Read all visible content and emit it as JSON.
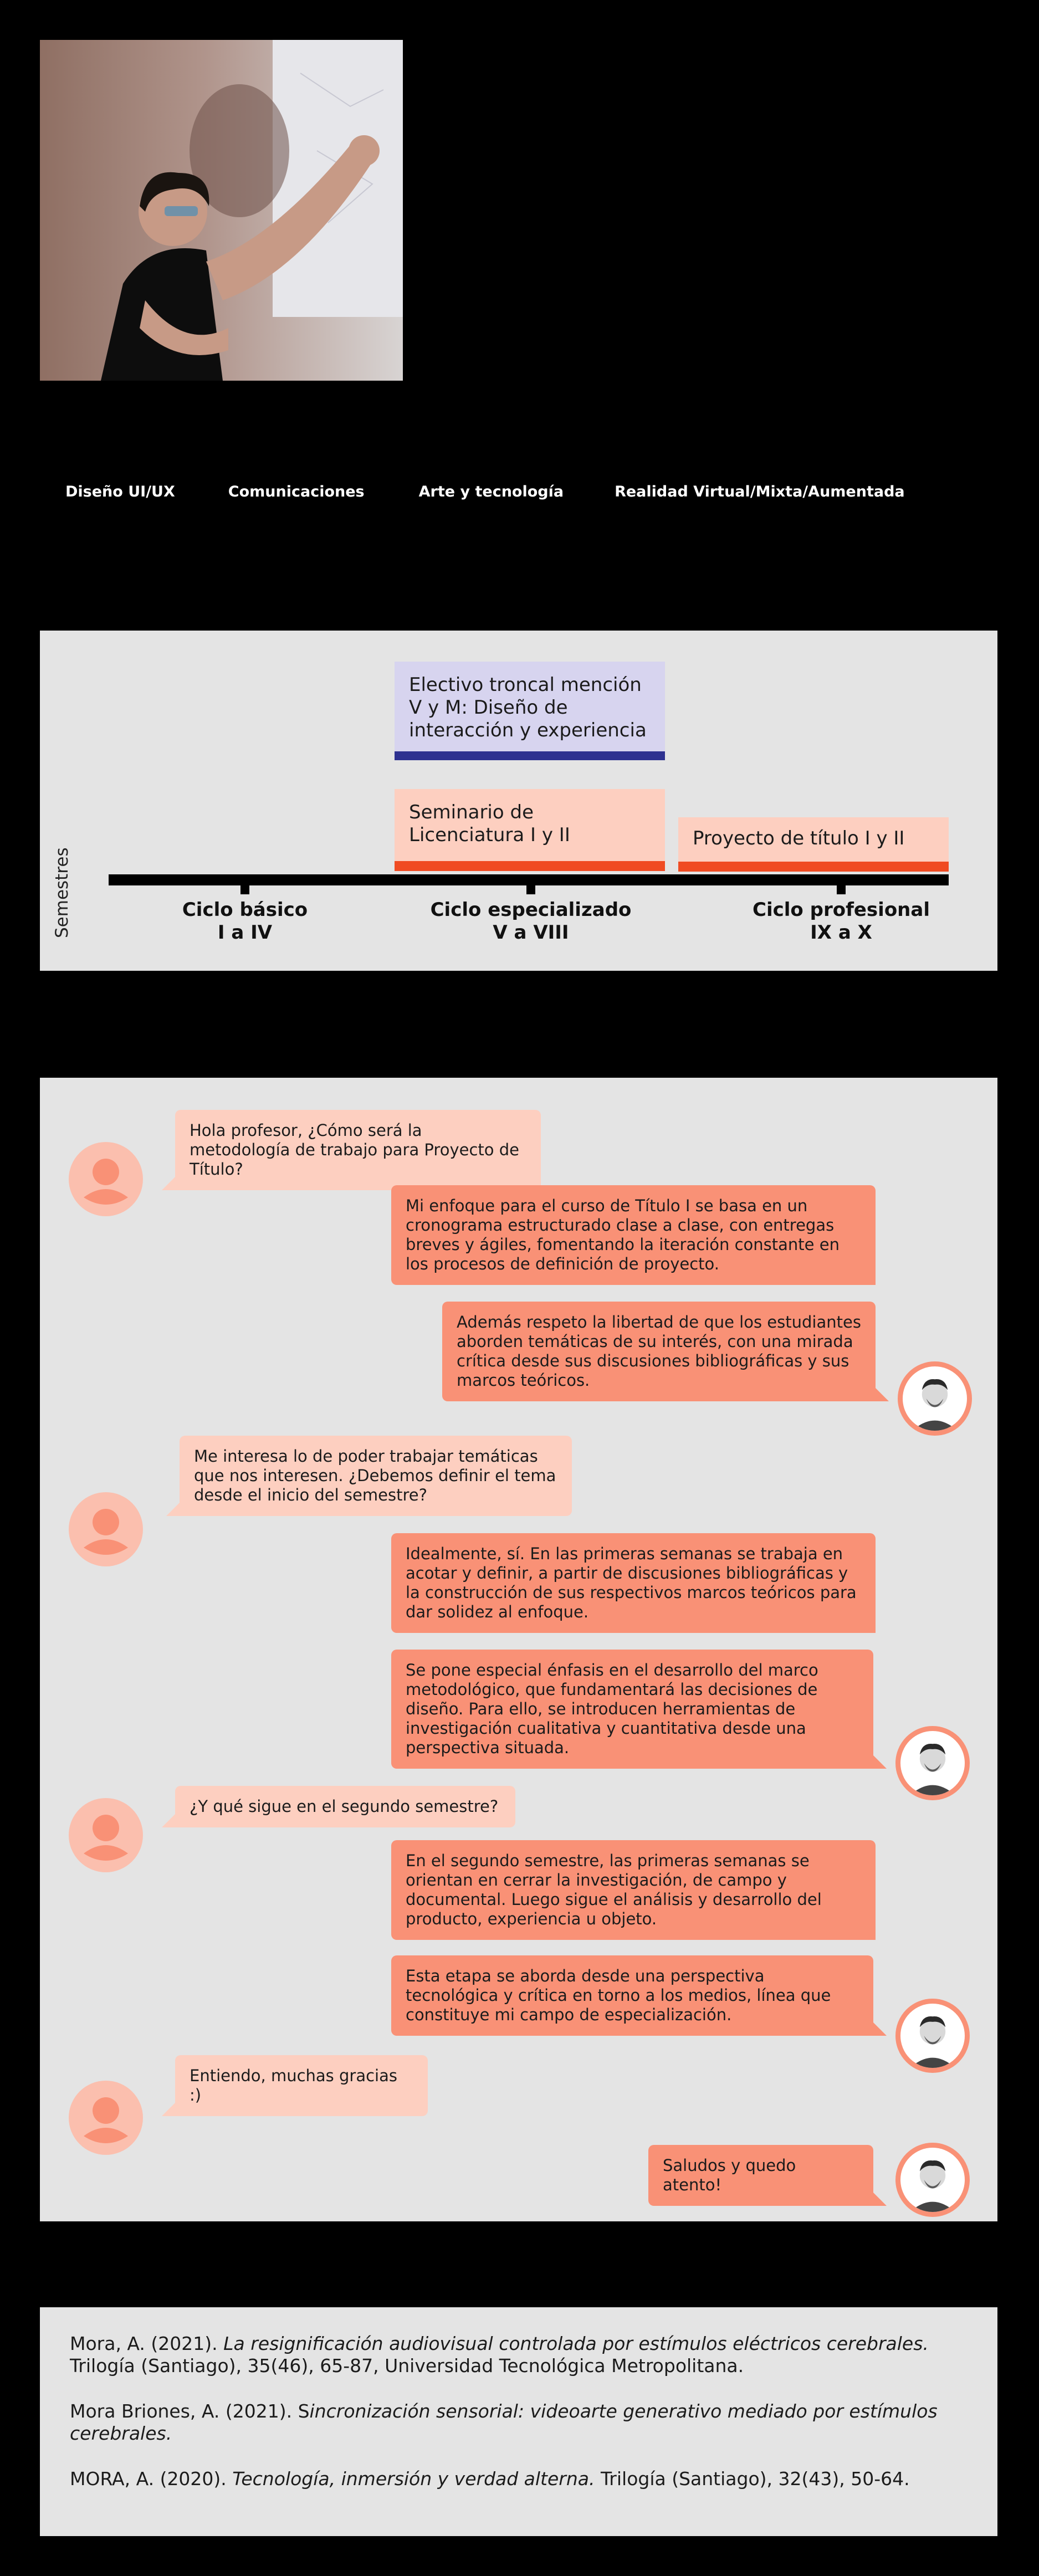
{
  "hero": {
    "photo_alt": "Profesor presentando frente a una proyección"
  },
  "tags": [
    "Diseño UI/UX",
    "Comunicaciones",
    "Arte y tecnología",
    "Realidad Virtual/Mixta/Aumentada"
  ],
  "timeline": {
    "blocks": {
      "electivo": "Electivo troncal mención V y M: Diseño de interacción y experiencia",
      "seminario": "Seminario de Licenciatura I y II",
      "proyecto": "Proyecto de título I y II"
    },
    "axis_label": "Semestres",
    "cycles": [
      {
        "name": "Ciclo básico",
        "range": "I a IV"
      },
      {
        "name": "Ciclo especializado",
        "range": "V a VIII"
      },
      {
        "name": "Ciclo profesional",
        "range": "IX a X"
      }
    ],
    "colors": {
      "electivo_bg": "#d7d4ef",
      "electivo_bar": "#2e3190",
      "seminario_bg": "#fdcfc0",
      "orange_bar": "#f04b22"
    }
  },
  "chat": {
    "messages": [
      {
        "from": "student",
        "text": "Hola profesor, ¿Cómo será la metodología de trabajo para Proyecto de Título?"
      },
      {
        "from": "professor",
        "text": "Mi enfoque para el curso de Título I se basa en un cronograma estructurado clase a clase, con entregas breves y ágiles, fomentando la iteración constante en los procesos de definición de proyecto."
      },
      {
        "from": "professor",
        "text": "Además respeto la libertad de que los estudiantes aborden temáticas de su interés, con una mirada crítica desde sus discusiones bibliográficas y sus marcos teóricos."
      },
      {
        "from": "student",
        "text": "Me interesa lo de poder trabajar temáticas que nos interesen. ¿Debemos definir el tema desde el inicio del semestre?"
      },
      {
        "from": "professor",
        "text": "Idealmente, sí. En las primeras semanas se trabaja en acotar y definir, a partir de discusiones bibliográficas y la construcción de sus respectivos marcos teóricos para dar solidez al enfoque."
      },
      {
        "from": "professor",
        "text": "Se pone especial énfasis en el desarrollo del marco metodológico, que fundamentará las decisiones de diseño. Para ello, se introducen herramientas de investigación cualitativa y cuantitativa desde una perspectiva situada."
      },
      {
        "from": "student",
        "text": "¿Y qué sigue en el segundo semestre?"
      },
      {
        "from": "professor",
        "text": "En el segundo semestre, las primeras semanas se orientan en cerrar la investigación, de campo y documental. Luego sigue el análisis y desarrollo del producto, experiencia u objeto."
      },
      {
        "from": "professor",
        "text": "Esta etapa se aborda desde una perspectiva tecnológica y crítica en torno a los medios, línea que constituye mi campo de especialización."
      },
      {
        "from": "student",
        "text": "Entiendo, muchas gracias :)"
      },
      {
        "from": "professor",
        "text": "Saludos y quedo atento!"
      }
    ],
    "colors": {
      "student_bubble": "#fdcfc0",
      "professor_bubble": "#f99176",
      "student_avatar": "#fbbfae"
    }
  },
  "references": [
    {
      "author": "Mora, A. (2021). ",
      "title": "La resignificación audiovisual controlada por estímulos eléctricos cerebrales.",
      "rest": " Trilogía (Santiago), 35(46), 65-87, Universidad Tecnológica Metropolitana."
    },
    {
      "author": "Mora Briones, A. (2021). S",
      "title": "incronización sensorial: videoarte generativo mediado por estímulos cerebrales.",
      "rest": ""
    },
    {
      "author": "MORA, A. (2020). ",
      "title": "Tecnología, inmersión y verdad alterna.",
      "rest": " Trilogía (Santiago), 32(43), 50-64."
    }
  ]
}
